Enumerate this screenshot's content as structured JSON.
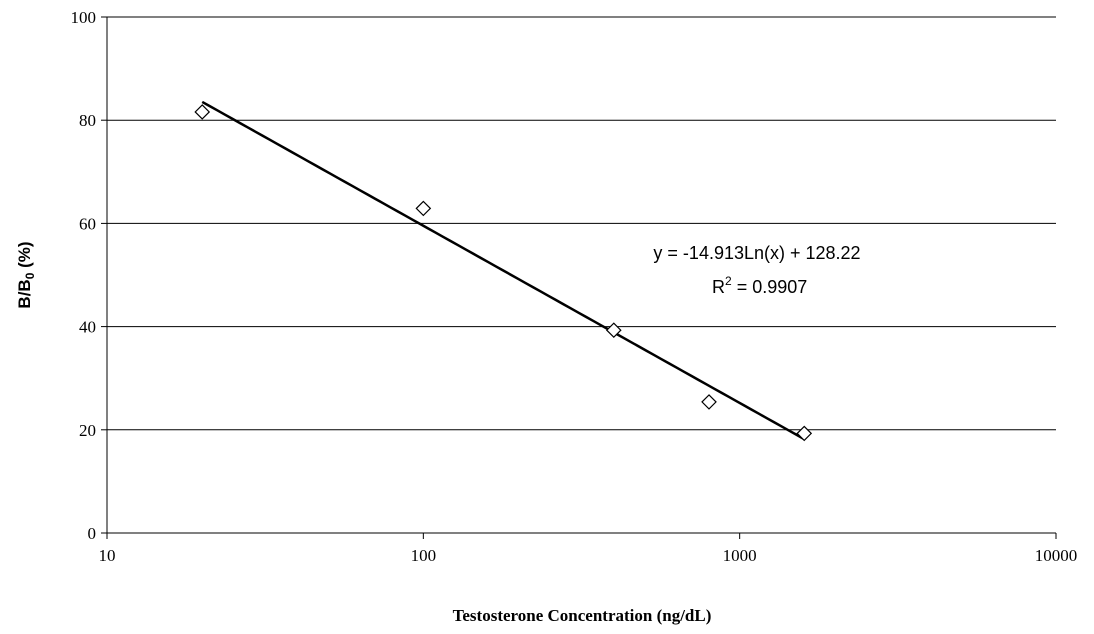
{
  "chart_data": {
    "type": "scatter",
    "x_scale": "log",
    "xlim": [
      10,
      10000
    ],
    "ylim": [
      0,
      100
    ],
    "x_ticks": [
      10,
      100,
      1000,
      10000
    ],
    "y_ticks": [
      0,
      20,
      40,
      60,
      80,
      100
    ],
    "x_tick_labels": [
      "10",
      "100",
      "1000",
      "10000"
    ],
    "y_tick_labels": [
      "0",
      "20",
      "40",
      "60",
      "80",
      "100"
    ],
    "xlabel": "Testosterone Concentration (ng/dL)",
    "ylabel_main": "B/B",
    "ylabel_sub": "0",
    "ylabel_suffix": " (%)",
    "grid": "horizontal",
    "points": [
      {
        "x": 20,
        "y": 81.6
      },
      {
        "x": 100,
        "y": 62.9
      },
      {
        "x": 400,
        "y": 39.3
      },
      {
        "x": 800,
        "y": 25.4
      },
      {
        "x": 1600,
        "y": 19.3
      }
    ],
    "trendline": {
      "type": "logarithmic",
      "slope": -14.913,
      "intercept": 128.22,
      "x_range": [
        20,
        1600
      ]
    },
    "equation_text": "y = -14.913Ln(x) + 128.22",
    "r2_prefix": "R",
    "r2_exp": "2",
    "r2_value": " = 0.9907",
    "colors": {
      "axis": "#000000",
      "grid": "#000000",
      "marker": "#000000",
      "trend": "#000000"
    }
  }
}
